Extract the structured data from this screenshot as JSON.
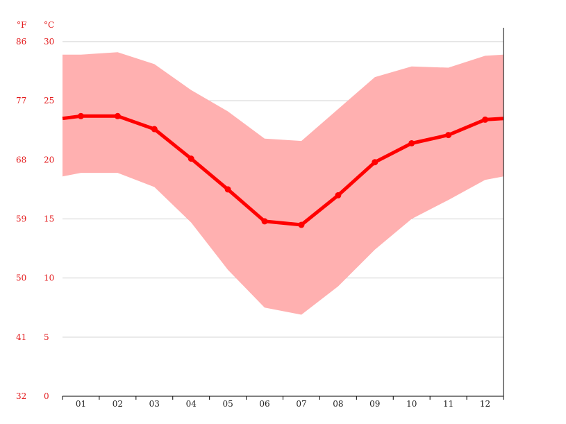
{
  "chart_data": {
    "type": "area",
    "title": "",
    "units": {
      "left": "°F",
      "right": "°C"
    },
    "y_ticks_c": [
      "30",
      "25",
      "20",
      "15",
      "10",
      "5",
      "0"
    ],
    "y_ticks_f": [
      "86",
      "77",
      "68",
      "59",
      "50",
      "41",
      "32"
    ],
    "ylim": [
      0,
      30
    ],
    "categories": [
      "01",
      "02",
      "03",
      "04",
      "05",
      "06",
      "07",
      "08",
      "09",
      "10",
      "11",
      "12"
    ],
    "series": [
      {
        "values": [
          23.7,
          23.7,
          22.6,
          20.1,
          17.5,
          14.8,
          14.5,
          17.0,
          19.8,
          21.4,
          22.1,
          23.4
        ]
      },
      {
        "values": [
          28.9,
          29.1,
          28.1,
          25.9,
          24.1,
          21.8,
          21.6,
          24.3,
          27.0,
          27.9,
          27.8,
          28.8
        ]
      },
      {
        "values": [
          18.9,
          18.9,
          17.7,
          14.7,
          10.7,
          7.5,
          6.9,
          9.3,
          12.4,
          15.0,
          16.6,
          18.3
        ]
      }
    ],
    "edge_values": {
      "mean": 23.5,
      "max": 28.9,
      "min": 18.6
    },
    "colors": {
      "line": "#ff0000",
      "band": "#ffb0b0",
      "ticks": "#e31a1c",
      "grid": "#cfcfcf"
    },
    "grid": true,
    "legend": "none"
  }
}
